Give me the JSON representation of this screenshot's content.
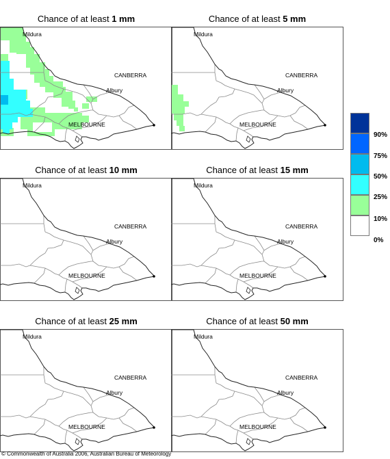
{
  "panels": [
    {
      "prefix": "Chance of at least ",
      "amount": "1 mm"
    },
    {
      "prefix": "Chance of at least ",
      "amount": "5 mm"
    },
    {
      "prefix": "Chance of at least ",
      "amount": "10 mm"
    },
    {
      "prefix": "Chance of at least ",
      "amount": "15 mm"
    },
    {
      "prefix": "Chance of at least ",
      "amount": "25 mm"
    },
    {
      "prefix": "Chance of at least ",
      "amount": "50 mm"
    }
  ],
  "places": {
    "mildura": "Mildura",
    "canberra": "CANBERRA",
    "albury": "Albury",
    "melbourne": "MELBOURNE"
  },
  "legend": {
    "labels": [
      "90%",
      "75%",
      "50%",
      "25%",
      "10%",
      "0%"
    ],
    "colors": [
      "#003399",
      "#0066ff",
      "#00bbee",
      "#33ffff",
      "#99ff99",
      "#ffffff"
    ]
  },
  "colors": {
    "c10": "#99ff99",
    "c25": "#33ffff",
    "c50": "#00bbee"
  },
  "copyright": "© Commonwealth of Australia 2006, Australian Bureau of Meteorology"
}
